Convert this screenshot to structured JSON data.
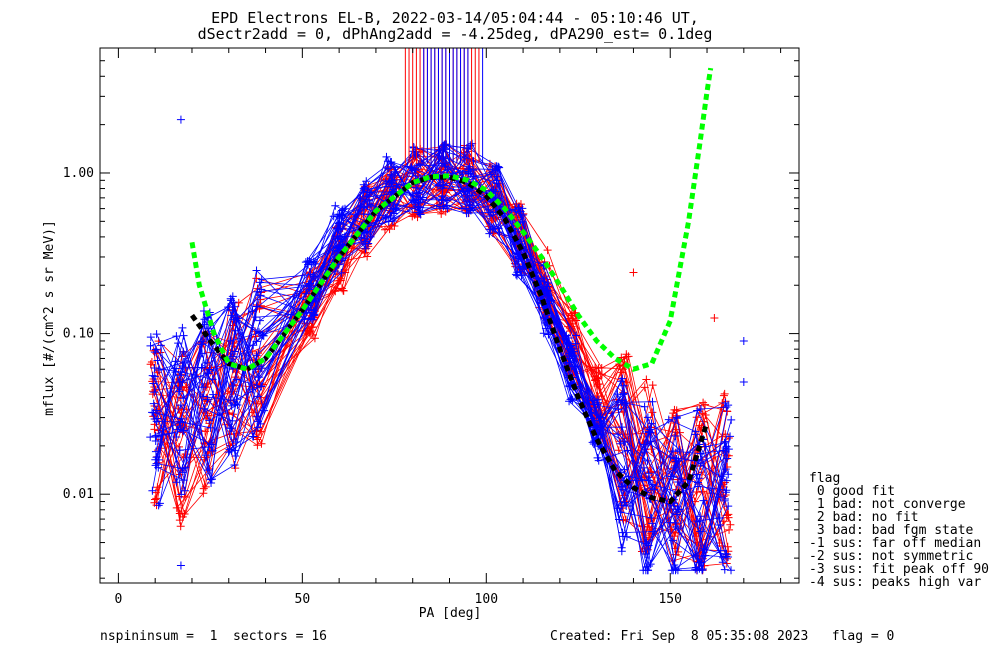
{
  "title_line1": "EPD Electrons EL-B, 2022-03-14/05:04:44 - 05:10:46 UT,",
  "title_line2": "dSectr2add = 0, dPhAng2add = -4.25deg, dPA290_est=   0.1deg",
  "footer_left": "nspininsum =  1  sectors = 16",
  "footer_right": "Created: Fri Sep  8 05:35:08 2023   flag = 0",
  "legend": {
    "title": "flag",
    "items": [
      " 0 good fit",
      " 1 bad: not converge",
      " 2 bad: no fit",
      " 3 bad: bad fgm state",
      "-1 sus: far off median",
      "-2 sus: not symmetric",
      "-3 sus: fit peak off 90",
      "-4 sus: peaks high var"
    ]
  },
  "colors": {
    "red": "#ff0000",
    "blue": "#0000ff",
    "green": "#00ff00",
    "black": "#000000"
  },
  "chart_data": {
    "type": "line",
    "title": "EPD Electrons EL-B, 2022-03-14/05:04:44 - 05:10:46 UT,",
    "xlabel": "PA [deg]",
    "ylabel": "mflux [#/(cm^2 s sr MeV)]",
    "xlim": [
      -5,
      185
    ],
    "ylim": [
      0.0028,
      6.0
    ],
    "yscale": "log",
    "x_ticks": [
      0,
      50,
      100,
      150
    ],
    "x_tick_labels": [
      "0",
      "50",
      "100",
      "150"
    ],
    "y_ticks": [
      0.01,
      0.1,
      1.0
    ],
    "y_tick_labels": [
      "0.01",
      "0.10",
      "1.00"
    ],
    "grid": false,
    "legend_position": "bottom-right, outside plot",
    "series": [
      {
        "color": "red",
        "x": [
          10,
          17,
          24,
          31,
          38,
          52,
          60,
          67,
          74,
          81,
          88,
          95,
          102,
          109,
          116,
          123,
          130,
          137,
          144,
          151,
          158,
          165
        ],
        "y": [
          0.028,
          0.022,
          0.03,
          0.045,
          0.065,
          0.15,
          0.3,
          0.5,
          0.72,
          0.88,
          0.92,
          0.9,
          0.7,
          0.4,
          0.2,
          0.09,
          0.04,
          0.022,
          0.015,
          0.011,
          0.011,
          0.012
        ]
      },
      {
        "color": "blue",
        "x": [
          10,
          17,
          24,
          31,
          38,
          52,
          60,
          67,
          74,
          81,
          88,
          95,
          102,
          109,
          116,
          123,
          130,
          137,
          144,
          151,
          158,
          165
        ],
        "y": [
          0.03,
          0.035,
          0.04,
          0.05,
          0.07,
          0.2,
          0.38,
          0.55,
          0.76,
          0.9,
          0.95,
          0.92,
          0.68,
          0.38,
          0.16,
          0.06,
          0.025,
          0.015,
          0.011,
          0.009,
          0.01,
          0.011
        ]
      },
      {
        "name": "fit (black dashed)",
        "color": "black",
        "x": [
          20,
          25,
          30,
          35,
          40,
          50,
          60,
          70,
          80,
          85,
          90,
          95,
          100,
          105,
          110,
          115,
          120,
          125,
          130,
          135,
          140,
          145,
          150,
          155,
          160
        ],
        "y": [
          0.13,
          0.09,
          0.065,
          0.06,
          0.07,
          0.14,
          0.3,
          0.58,
          0.87,
          0.94,
          0.94,
          0.87,
          0.72,
          0.52,
          0.32,
          0.17,
          0.08,
          0.04,
          0.022,
          0.014,
          0.011,
          0.0095,
          0.009,
          0.012,
          0.028
        ]
      },
      {
        "name": "fit (green dashed)",
        "color": "green",
        "x": [
          20,
          22,
          26,
          30,
          35,
          40,
          50,
          60,
          70,
          80,
          85,
          90,
          95,
          100,
          105,
          110,
          115,
          120,
          125,
          130,
          135,
          140,
          145,
          150,
          155,
          158,
          160,
          161
        ],
        "y": [
          0.37,
          0.2,
          0.1,
          0.065,
          0.06,
          0.07,
          0.14,
          0.3,
          0.58,
          0.87,
          0.95,
          0.96,
          0.9,
          0.78,
          0.6,
          0.43,
          0.3,
          0.2,
          0.13,
          0.09,
          0.07,
          0.06,
          0.065,
          0.12,
          0.5,
          1.5,
          3.2,
          4.5
        ]
      }
    ],
    "spikes": {
      "description": "vertical lines reaching top of plot near PA 80-100",
      "red_x": [
        78,
        79,
        80,
        81,
        82,
        83,
        84,
        85,
        86,
        87,
        88,
        89,
        90,
        91,
        92,
        93,
        94,
        95,
        96,
        97,
        98
      ],
      "blue_x": [
        83,
        84,
        85,
        86,
        87,
        88,
        89,
        90,
        91,
        92,
        93,
        94,
        95,
        99
      ],
      "y_bottom": 1.15
    },
    "outliers": {
      "blue": [
        [
          17,
          2.15
        ],
        [
          17,
          0.0036
        ],
        [
          170,
          0.05
        ],
        [
          170,
          0.09
        ]
      ],
      "red": [
        [
          162,
          0.125
        ],
        [
          140,
          0.24
        ]
      ]
    }
  }
}
